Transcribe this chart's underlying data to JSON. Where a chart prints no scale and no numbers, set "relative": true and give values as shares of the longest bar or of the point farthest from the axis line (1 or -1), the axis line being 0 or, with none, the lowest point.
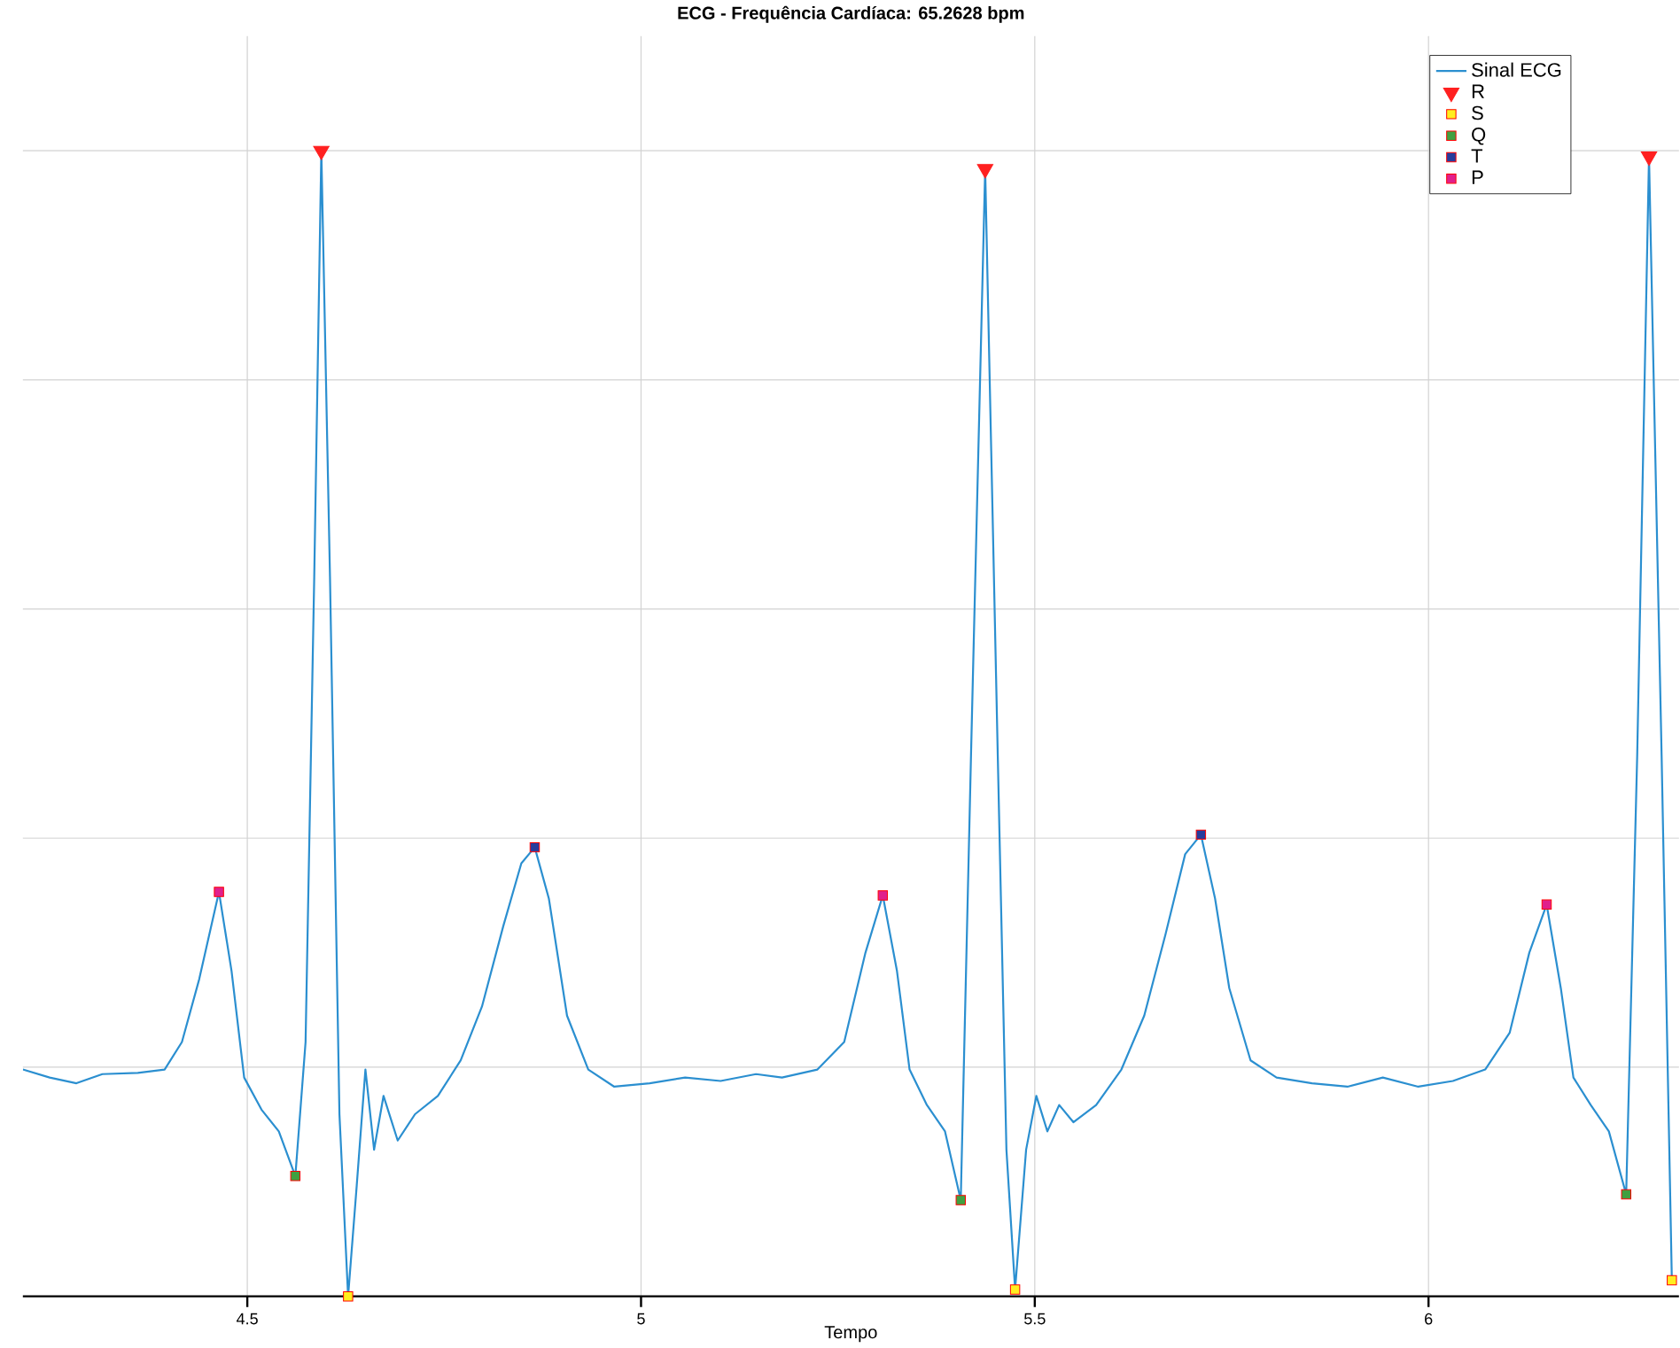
{
  "chart_data": {
    "type": "line",
    "title": "ECG - Frequência Cardíaca: 65.2628 bpm",
    "xlabel": "Tempo",
    "relative": true,
    "grid": true,
    "legend": "top right",
    "xlim": [
      4.215,
      6.318
    ],
    "xticks": [
      4.5,
      5,
      5.5,
      6
    ],
    "series": [
      {
        "name": "Sinal ECG",
        "color": "#2b8fd0",
        "marker": "none",
        "x": [
          4.215,
          4.249,
          4.283,
          4.316,
          4.361,
          4.395,
          4.417,
          4.439,
          4.464,
          4.48,
          4.496,
          4.518,
          4.54,
          4.561,
          4.574,
          4.585,
          4.594,
          4.605,
          4.617,
          4.628,
          4.639,
          4.65,
          4.661,
          4.673,
          4.691,
          4.713,
          4.742,
          4.771,
          4.798,
          4.825,
          4.848,
          4.865,
          4.883,
          4.906,
          4.933,
          4.966,
          5.011,
          5.056,
          5.101,
          5.146,
          5.179,
          5.224,
          5.258,
          5.285,
          5.307,
          5.325,
          5.341,
          5.363,
          5.386,
          5.406,
          5.419,
          5.437,
          5.453,
          5.464,
          5.475,
          5.489,
          5.502,
          5.516,
          5.531,
          5.549,
          5.578,
          5.61,
          5.639,
          5.666,
          5.691,
          5.711,
          5.729,
          5.747,
          5.774,
          5.807,
          5.852,
          5.897,
          5.942,
          5.987,
          6.031,
          6.072,
          6.103,
          6.128,
          6.15,
          6.168,
          6.184,
          6.206,
          6.229,
          6.251,
          6.265,
          6.28,
          6.296,
          6.309
        ],
        "values": [
          0.198,
          0.191,
          0.186,
          0.194,
          0.195,
          0.198,
          0.222,
          0.277,
          0.353,
          0.284,
          0.191,
          0.163,
          0.144,
          0.105,
          0.222,
          0.628,
          1.0,
          0.628,
          0.159,
          0.0,
          0.097,
          0.198,
          0.128,
          0.175,
          0.136,
          0.159,
          0.175,
          0.206,
          0.253,
          0.323,
          0.378,
          0.392,
          0.347,
          0.245,
          0.198,
          0.183,
          0.186,
          0.191,
          0.188,
          0.194,
          0.191,
          0.198,
          0.222,
          0.3,
          0.35,
          0.284,
          0.198,
          0.167,
          0.144,
          0.084,
          0.472,
          0.984,
          0.472,
          0.128,
          0.006,
          0.128,
          0.175,
          0.144,
          0.167,
          0.152,
          0.167,
          0.198,
          0.245,
          0.316,
          0.386,
          0.403,
          0.347,
          0.269,
          0.206,
          0.191,
          0.186,
          0.183,
          0.191,
          0.183,
          0.188,
          0.198,
          0.23,
          0.3,
          0.342,
          0.269,
          0.191,
          0.167,
          0.144,
          0.089,
          0.472,
          0.995,
          0.472,
          0.014
        ]
      },
      {
        "name": "R",
        "type": "scatter",
        "color": "#ff2020",
        "marker": "triangle",
        "x": [
          4.594,
          5.437,
          6.28
        ],
        "values": [
          1.0,
          0.984,
          0.995
        ]
      },
      {
        "name": "S",
        "type": "scatter",
        "color": "#ffee20",
        "marker": "square",
        "x": [
          4.628,
          5.475,
          6.309
        ],
        "values": [
          0.0,
          0.006,
          0.014
        ]
      },
      {
        "name": "Q",
        "type": "scatter",
        "color": "#40a040",
        "marker": "square",
        "x": [
          4.561,
          5.406,
          6.251
        ],
        "values": [
          0.105,
          0.084,
          0.089
        ]
      },
      {
        "name": "T",
        "type": "scatter",
        "color": "#283c9c",
        "marker": "square",
        "x": [
          4.865,
          5.711
        ],
        "values": [
          0.392,
          0.403
        ]
      },
      {
        "name": "P",
        "type": "scatter",
        "color": "#e0208c",
        "marker": "square",
        "x": [
          4.464,
          5.307,
          6.15
        ],
        "values": [
          0.353,
          0.35,
          0.342
        ]
      }
    ]
  }
}
